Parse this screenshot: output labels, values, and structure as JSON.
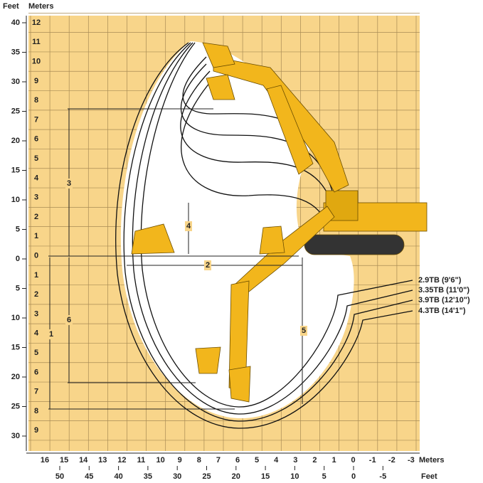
{
  "axes": {
    "left_feet_unit": "Feet",
    "left_meters_unit": "Meters",
    "left_feet": [
      "40",
      "35",
      "30",
      "25",
      "20",
      "15",
      "10",
      "5",
      "0",
      "5",
      "10",
      "15",
      "20",
      "25",
      "30"
    ],
    "left_meters": [
      "12",
      "11",
      "10",
      "9",
      "8",
      "7",
      "6",
      "5",
      "4",
      "3",
      "2",
      "1",
      "0",
      "1",
      "2",
      "3",
      "4",
      "5",
      "6",
      "7",
      "8",
      "9"
    ],
    "bottom_meters": [
      "16",
      "15",
      "14",
      "13",
      "12",
      "11",
      "10",
      "9",
      "8",
      "7",
      "6",
      "5",
      "4",
      "3",
      "2",
      "1",
      "0",
      "-1",
      "-2",
      "-3"
    ],
    "bottom_meters_unit": "Meters",
    "bottom_feet": [
      "50",
      "45",
      "40",
      "35",
      "30",
      "25",
      "20",
      "15",
      "10",
      "5",
      "0",
      "-5"
    ],
    "bottom_feet_unit": "Feet"
  },
  "dimensions": [
    "1",
    "2",
    "3",
    "4",
    "5",
    "6"
  ],
  "sticks": [
    "2.9TB (9'6\")",
    "3.35TB (11'0\")",
    "3.9TB (12'10\")",
    "4.3TB (14'1\")"
  ]
}
